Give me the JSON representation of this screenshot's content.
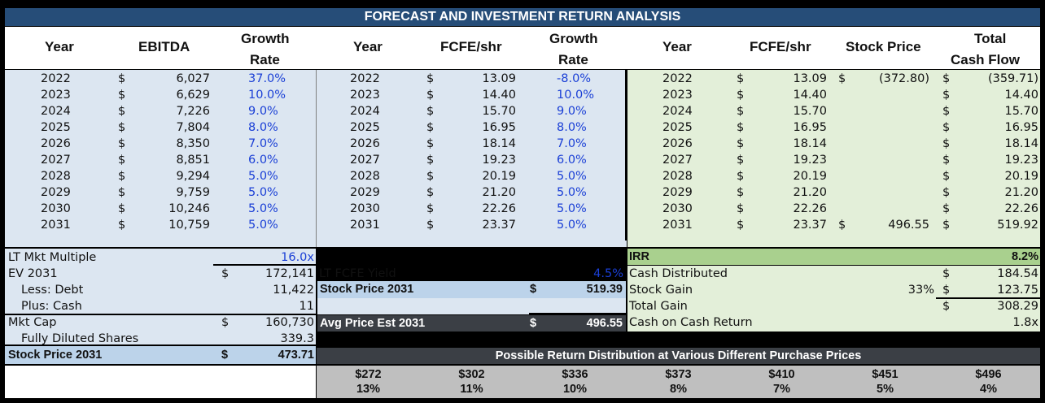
{
  "title": "FORECAST AND INVESTMENT RETURN ANALYSIS",
  "headers": {
    "ebitda": [
      "Year",
      "EBITDA",
      "Growth",
      "Rate"
    ],
    "fcfe": [
      "Year",
      "FCFE/shr",
      "Growth",
      "Rate"
    ],
    "cash": [
      "Year",
      "FCFE/shr",
      "Stock Price",
      "Total",
      "Cash Flow"
    ]
  },
  "currency": "$",
  "ebitda_rows": [
    {
      "year": "2022",
      "value": "6,027",
      "growth": "37.0%"
    },
    {
      "year": "2023",
      "value": "6,629",
      "growth": "10.0%"
    },
    {
      "year": "2024",
      "value": "7,226",
      "growth": "9.0%"
    },
    {
      "year": "2025",
      "value": "7,804",
      "growth": "8.0%"
    },
    {
      "year": "2026",
      "value": "8,350",
      "growth": "7.0%"
    },
    {
      "year": "2027",
      "value": "8,851",
      "growth": "6.0%"
    },
    {
      "year": "2028",
      "value": "9,294",
      "growth": "5.0%"
    },
    {
      "year": "2029",
      "value": "9,759",
      "growth": "5.0%"
    },
    {
      "year": "2030",
      "value": "10,246",
      "growth": "5.0%"
    },
    {
      "year": "2031",
      "value": "10,759",
      "growth": "5.0%"
    }
  ],
  "fcfe_rows": [
    {
      "year": "2022",
      "value": "13.09",
      "growth": "-8.0%"
    },
    {
      "year": "2023",
      "value": "14.40",
      "growth": "10.0%"
    },
    {
      "year": "2024",
      "value": "15.70",
      "growth": "9.0%"
    },
    {
      "year": "2025",
      "value": "16.95",
      "growth": "8.0%"
    },
    {
      "year": "2026",
      "value": "18.14",
      "growth": "7.0%"
    },
    {
      "year": "2027",
      "value": "19.23",
      "growth": "6.0%"
    },
    {
      "year": "2028",
      "value": "20.19",
      "growth": "5.0%"
    },
    {
      "year": "2029",
      "value": "21.20",
      "growth": "5.0%"
    },
    {
      "year": "2030",
      "value": "22.26",
      "growth": "5.0%"
    },
    {
      "year": "2031",
      "value": "23.37",
      "growth": "5.0%"
    }
  ],
  "cash_rows": [
    {
      "year": "2022",
      "fcfe": "13.09",
      "price": "(372.80)",
      "total": "(359.71)"
    },
    {
      "year": "2023",
      "fcfe": "14.40",
      "price": "",
      "total": "14.40"
    },
    {
      "year": "2024",
      "fcfe": "15.70",
      "price": "",
      "total": "15.70"
    },
    {
      "year": "2025",
      "fcfe": "16.95",
      "price": "",
      "total": "16.95"
    },
    {
      "year": "2026",
      "fcfe": "18.14",
      "price": "",
      "total": "18.14"
    },
    {
      "year": "2027",
      "fcfe": "19.23",
      "price": "",
      "total": "19.23"
    },
    {
      "year": "2028",
      "fcfe": "20.19",
      "price": "",
      "total": "20.19"
    },
    {
      "year": "2029",
      "fcfe": "21.20",
      "price": "",
      "total": "21.20"
    },
    {
      "year": "2030",
      "fcfe": "22.26",
      "price": "",
      "total": "22.26"
    },
    {
      "year": "2031",
      "fcfe": "23.37",
      "price": "496.55",
      "total": "519.92"
    }
  ],
  "valuation": {
    "lt_mkt_multiple_label": "LT Mkt Multiple",
    "lt_mkt_multiple": "16.0x",
    "ev_label": "EV 2031",
    "ev": "172,141",
    "debt_label": "Less: Debt",
    "debt": "11,422",
    "cash_label": "Plus: Cash",
    "cash": "11",
    "mktcap_label": "Mkt Cap",
    "mktcap": "160,730",
    "shares_label": "Fully Diluted Shares",
    "shares": "339.3",
    "price_label": "Stock Price 2031",
    "price": "473.71"
  },
  "fcfe_valuation": {
    "yield_label": "LT FCFE Yield",
    "yield": "4.5%",
    "price_label": "Stock Price 2031",
    "price": "519.39",
    "avg_label": "Avg Price Est 2031",
    "avg": "496.55"
  },
  "returns": {
    "irr_label": "IRR",
    "irr": "8.2%",
    "dist_label": "Cash Distributed",
    "dist": "184.54",
    "gain_label": "Stock Gain",
    "gain_pct": "33%",
    "gain": "123.75",
    "total_label": "Total Gain",
    "total": "308.29",
    "coc_label": "Cash on Cash Return",
    "coc": "1.8x"
  },
  "distribution": {
    "title": "Possible Return Distribution at Various Different Purchase Prices",
    "prices": [
      "$272",
      "$302",
      "$336",
      "$373",
      "$410",
      "$451",
      "$496"
    ],
    "returns": [
      "13%",
      "11%",
      "10%",
      "8%",
      "7%",
      "5%",
      "4%"
    ]
  },
  "colors": {
    "title_bg": "#264d78",
    "blue_panel": "#dce6f1",
    "blue_hl": "#bcd3ea",
    "green_panel": "#e3efd9",
    "green_hl": "#a9d08e",
    "dark": "#3b3f45",
    "gray": "#bfbfbf",
    "growth_text": "#1a3fd6"
  }
}
